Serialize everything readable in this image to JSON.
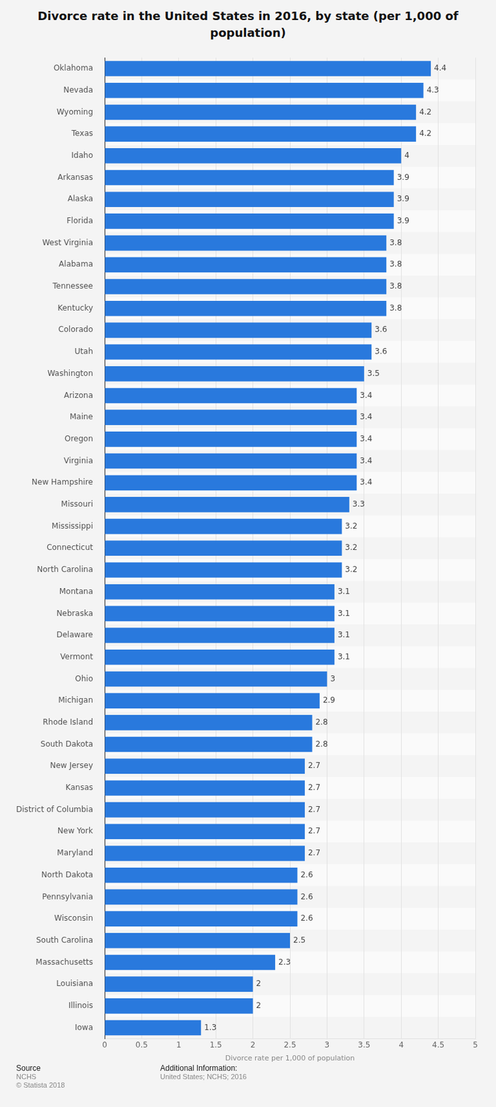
{
  "chart_data": {
    "type": "bar",
    "orientation": "horizontal",
    "title": "Divorce rate in the United States in 2016, by state (per 1,000 of population)",
    "xlabel": "Divorce rate per 1,000 of population",
    "categories": [
      "Oklahoma",
      "Nevada",
      "Wyoming",
      "Texas",
      "Idaho",
      "Arkansas",
      "Alaska",
      "Florida",
      "West Virginia",
      "Alabama",
      "Tennessee",
      "Kentucky",
      "Colorado",
      "Utah",
      "Washington",
      "Arizona",
      "Maine",
      "Oregon",
      "Virginia",
      "New Hampshire",
      "Missouri",
      "Mississippi",
      "Connecticut",
      "North Carolina",
      "Montana",
      "Nebraska",
      "Delaware",
      "Vermont",
      "Ohio",
      "Michigan",
      "Rhode Island",
      "South Dakota",
      "New Jersey",
      "Kansas",
      "District of Columbia",
      "New York",
      "Maryland",
      "North Dakota",
      "Pennsylvania",
      "Wisconsin",
      "South Carolina",
      "Massachusetts",
      "Louisiana",
      "Illinois",
      "Iowa"
    ],
    "values": [
      4.4,
      4.3,
      4.2,
      4.2,
      4,
      3.9,
      3.9,
      3.9,
      3.8,
      3.8,
      3.8,
      3.8,
      3.6,
      3.6,
      3.5,
      3.4,
      3.4,
      3.4,
      3.4,
      3.4,
      3.3,
      3.2,
      3.2,
      3.2,
      3.1,
      3.1,
      3.1,
      3.1,
      3,
      2.9,
      2.8,
      2.8,
      2.7,
      2.7,
      2.7,
      2.7,
      2.7,
      2.6,
      2.6,
      2.6,
      2.5,
      2.3,
      2,
      2,
      1.3
    ],
    "color": "#2979dd",
    "xlim": [
      0,
      5
    ],
    "xticks": [
      0,
      0.5,
      1,
      1.5,
      2,
      2.5,
      3,
      3.5,
      4,
      4.5,
      5
    ],
    "grid": true,
    "data_labels": true,
    "footnotes": [
      {
        "heading": "Source",
        "lines": [
          "NCHS",
          "© Statista 2018"
        ]
      },
      {
        "heading": "Additional Information:",
        "lines": [
          "United States; NCHS; 2016"
        ]
      }
    ]
  }
}
